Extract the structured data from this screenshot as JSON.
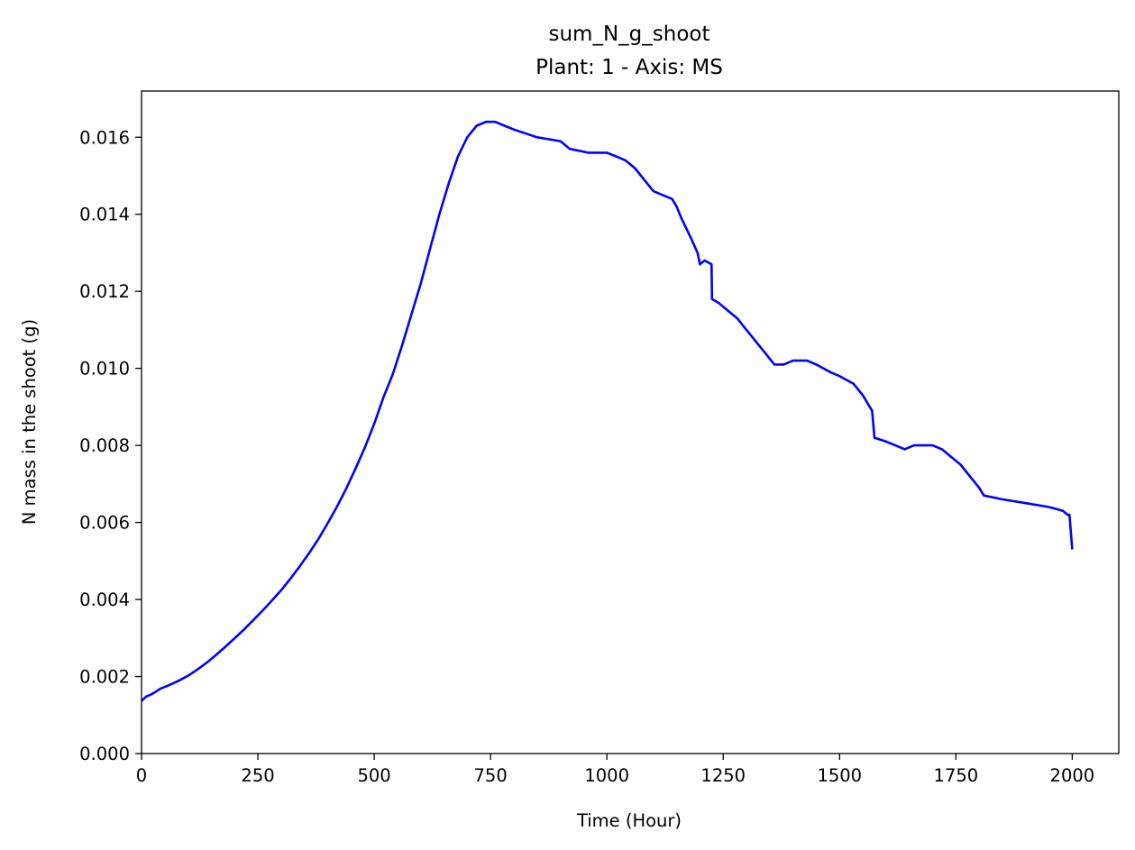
{
  "chart_data": {
    "type": "line",
    "title": "sum_N_g_shoot",
    "subtitle": "Plant: 1 - Axis: MS",
    "xlabel": "Time (Hour)",
    "ylabel": "N mass in the shoot (g)",
    "xlim": [
      0,
      2100
    ],
    "ylim": [
      0,
      0.0172
    ],
    "x_ticks": [
      0,
      250,
      500,
      750,
      1000,
      1250,
      1500,
      1750,
      2000
    ],
    "x_tick_labels": [
      "0",
      "250",
      "500",
      "750",
      "1000",
      "1250",
      "1500",
      "1750",
      "2000"
    ],
    "y_ticks": [
      0,
      0.002,
      0.004,
      0.006,
      0.008,
      0.01,
      0.012,
      0.014,
      0.016
    ],
    "y_tick_labels": [
      "0.000",
      "0.002",
      "0.004",
      "0.006",
      "0.008",
      "0.010",
      "0.012",
      "0.014",
      "0.016"
    ],
    "grid": false,
    "line_color": "#0000ff",
    "series": [
      {
        "x": [
          0,
          10,
          20,
          30,
          40,
          60,
          80,
          100,
          120,
          140,
          160,
          180,
          200,
          220,
          240,
          260,
          280,
          300,
          320,
          340,
          360,
          380,
          400,
          420,
          440,
          460,
          480,
          500,
          520,
          540,
          560,
          580,
          600,
          620,
          640,
          660,
          680,
          700,
          720,
          740,
          760,
          780,
          800,
          850,
          900,
          910,
          920,
          960,
          1000,
          1020,
          1040,
          1060,
          1080,
          1100,
          1120,
          1140,
          1150,
          1160,
          1180,
          1195,
          1200,
          1210,
          1225,
          1226,
          1240,
          1260,
          1280,
          1300,
          1320,
          1340,
          1360,
          1370,
          1380,
          1400,
          1430,
          1450,
          1480,
          1500,
          1530,
          1550,
          1565,
          1570,
          1575,
          1600,
          1620,
          1640,
          1660,
          1680,
          1700,
          1720,
          1740,
          1760,
          1780,
          1800,
          1810,
          1850,
          1900,
          1950,
          1980,
          1990,
          1994,
          2000
        ],
        "y": [
          0.00137,
          0.00148,
          0.00153,
          0.0016,
          0.00168,
          0.00178,
          0.00189,
          0.00202,
          0.00218,
          0.00236,
          0.00256,
          0.00277,
          0.00299,
          0.00322,
          0.00346,
          0.00371,
          0.00397,
          0.00424,
          0.00454,
          0.00486,
          0.0052,
          0.00557,
          0.00598,
          0.00641,
          0.00688,
          0.0074,
          0.00795,
          0.00856,
          0.00925,
          0.00985,
          0.0106,
          0.0114,
          0.0122,
          0.0131,
          0.014,
          0.0148,
          0.0155,
          0.016,
          0.0163,
          0.0164,
          0.0164,
          0.0163,
          0.0162,
          0.016,
          0.0159,
          0.0158,
          0.0157,
          0.0156,
          0.0156,
          0.0155,
          0.0154,
          0.0152,
          0.0149,
          0.0146,
          0.0145,
          0.0144,
          0.0142,
          0.0139,
          0.0134,
          0.013,
          0.0127,
          0.0128,
          0.0127,
          0.0118,
          0.0117,
          0.0115,
          0.0113,
          0.011,
          0.0107,
          0.0104,
          0.0101,
          0.0101,
          0.0101,
          0.0102,
          0.0102,
          0.0101,
          0.0099,
          0.0098,
          0.0096,
          0.0093,
          0.009,
          0.0089,
          0.0082,
          0.0081,
          0.008,
          0.0079,
          0.008,
          0.008,
          0.008,
          0.0079,
          0.0077,
          0.0075,
          0.0072,
          0.0069,
          0.0067,
          0.0066,
          0.0065,
          0.0064,
          0.0063,
          0.0062,
          0.0062,
          0.0053
        ]
      }
    ]
  }
}
